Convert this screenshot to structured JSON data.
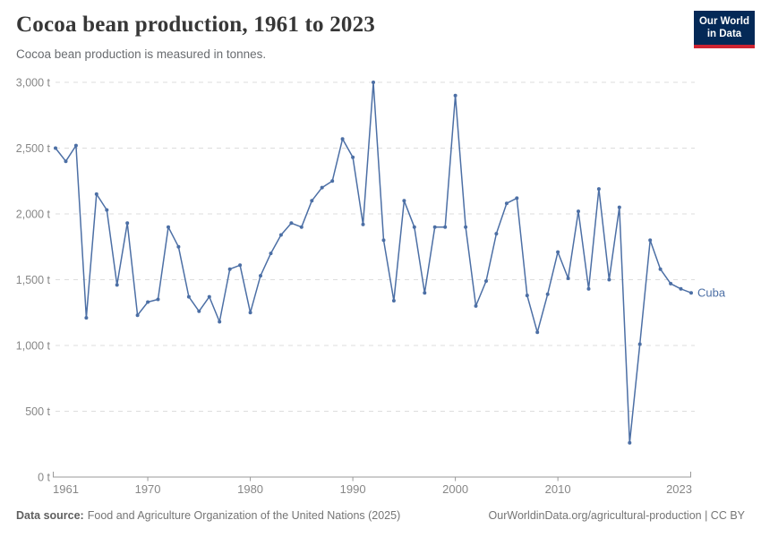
{
  "header": {
    "title": "Cocoa bean production, 1961 to 2023",
    "subtitle": "Cocoa bean production is measured in tonnes.",
    "logo": {
      "line1": "Our World",
      "line2": "in Data",
      "bg_color": "#042957",
      "accent_color": "#CE2331"
    }
  },
  "chart_data": {
    "type": "line",
    "title": "Cocoa bean production, 1961 to 2023",
    "unit": "t",
    "ylim": [
      0,
      3000
    ],
    "ytick_step": 500,
    "yticks": [
      0,
      500,
      1000,
      1500,
      2000,
      2500,
      3000
    ],
    "xticks": [
      1961,
      1970,
      1980,
      1990,
      2000,
      2010,
      2023
    ],
    "grid": true,
    "legend_position": "end-of-line",
    "series": [
      {
        "name": "Cuba",
        "color": "#4C6FA5",
        "x": [
          1961,
          1962,
          1963,
          1964,
          1965,
          1966,
          1967,
          1968,
          1969,
          1970,
          1971,
          1972,
          1973,
          1974,
          1975,
          1976,
          1977,
          1978,
          1979,
          1980,
          1981,
          1982,
          1983,
          1984,
          1985,
          1986,
          1987,
          1988,
          1989,
          1990,
          1991,
          1992,
          1993,
          1994,
          1995,
          1996,
          1997,
          1998,
          1999,
          2000,
          2001,
          2002,
          2003,
          2004,
          2005,
          2006,
          2007,
          2008,
          2009,
          2010,
          2011,
          2012,
          2013,
          2014,
          2015,
          2016,
          2017,
          2018,
          2019,
          2020,
          2021,
          2022,
          2023
        ],
        "values": [
          2500,
          2400,
          2520,
          1210,
          2150,
          2030,
          1460,
          1930,
          1230,
          1330,
          1350,
          1900,
          1750,
          1370,
          1260,
          1370,
          1180,
          1580,
          1610,
          1250,
          1530,
          1700,
          1840,
          1930,
          1900,
          2100,
          2200,
          2250,
          2570,
          2430,
          1920,
          3000,
          1800,
          1340,
          2100,
          1900,
          1400,
          1900,
          1900,
          2900,
          1900,
          1300,
          1490,
          1850,
          2080,
          2120,
          1380,
          1100,
          1390,
          1710,
          1510,
          2020,
          1430,
          2190,
          1500,
          2050,
          260,
          1010,
          1800,
          1580,
          1470,
          1430,
          1400
        ]
      }
    ],
    "style": {
      "gridline_color": "#dddddd",
      "axis_color": "#999999",
      "tick_label_color": "#878787"
    }
  },
  "footer": {
    "source_label": "Data source:",
    "source_text": "Food and Agriculture Organization of the United Nations (2025)",
    "credit": "OurWorldinData.org/agricultural-production | CC BY"
  }
}
